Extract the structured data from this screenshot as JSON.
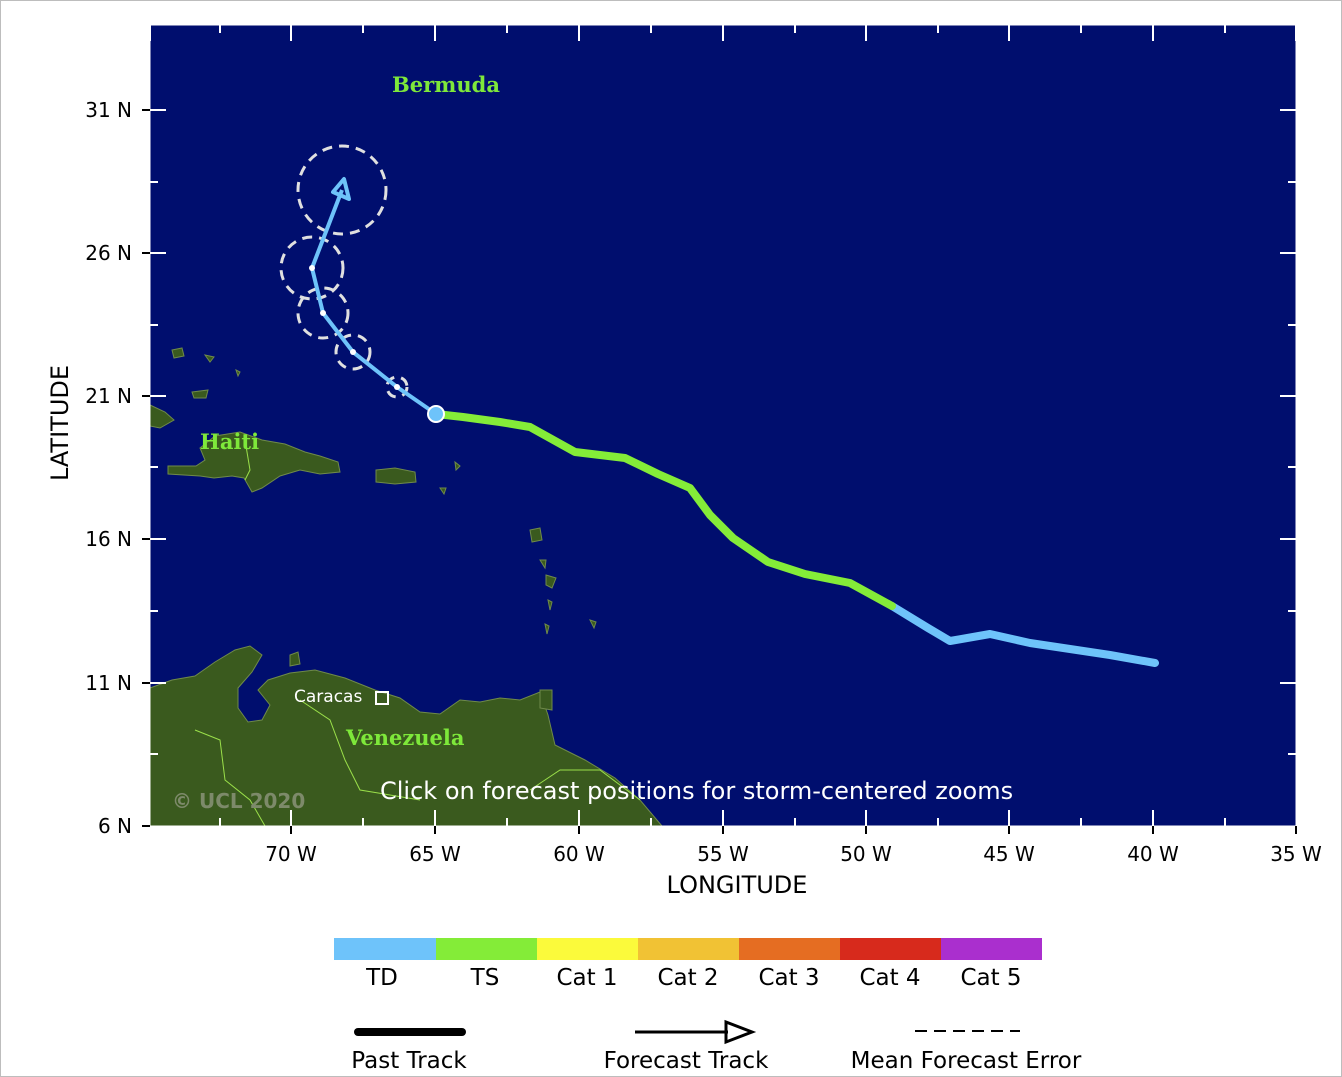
{
  "map": {
    "axes": {
      "x_title": "LONGITUDE",
      "y_title": "LATITUDE",
      "x_ticks": [
        "70 W",
        "65 W",
        "60 W",
        "55 W",
        "50 W",
        "45 W",
        "40 W",
        "35 W"
      ],
      "y_ticks": [
        "31 N",
        "26 N",
        "21 N",
        "16 N",
        "11 N",
        "6 N"
      ]
    },
    "places": {
      "bermuda": "Bermuda",
      "haiti": "Haiti",
      "venezuela": "Venezuela",
      "caracas": "Caracas"
    },
    "copyright": "© UCL 2020",
    "hint": "Click on forecast positions for storm-centered zooms",
    "colors": {
      "ocean": "#000e6e",
      "land": "#3a5a1e",
      "td": "#6ec3fa",
      "ts": "#84ec38",
      "cat1": "#fbfa3b",
      "cat2": "#f1c234",
      "cat3": "#e56d22",
      "cat4": "#d72a1c",
      "cat5": "#aa2fce"
    }
  },
  "legend": {
    "categories": [
      "TD",
      "TS",
      "Cat 1",
      "Cat 2",
      "Cat 3",
      "Cat 4",
      "Cat 5"
    ],
    "past_track": "Past Track",
    "forecast_track": "Forecast Track",
    "mean_forecast_error": "Mean Forecast Error"
  }
}
